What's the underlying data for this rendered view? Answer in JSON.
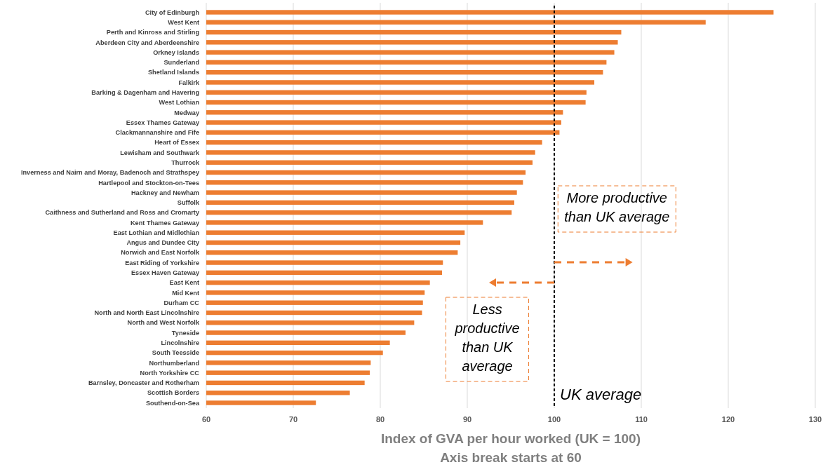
{
  "chart_data": {
    "type": "bar",
    "orientation": "horizontal",
    "xlabel": "Index of GVA per hour worked (UK = 100)",
    "categories": [
      "City of Edinburgh",
      "West Kent",
      "Perth and Kinross and Stirling",
      "Aberdeen City and Aberdeenshire",
      "Orkney Islands",
      "Sunderland",
      "Shetland Islands",
      "Falkirk",
      "Barking & Dagenham and Havering",
      "West Lothian",
      "Medway",
      "Essex Thames Gateway",
      "Clackmannanshire and Fife",
      "Heart of Essex",
      "Lewisham and Southwark",
      "Thurrock",
      "Inverness and Nairn and Moray, Badenoch and Strathspey",
      "Hartlepool and Stockton-on-Tees",
      "Hackney and Newham",
      "Suffolk",
      "Caithness and Sutherland and Ross and Cromarty",
      "Kent Thames Gateway",
      "East Lothian and Midlothian",
      "Angus and Dundee City",
      "Norwich and East Norfolk",
      "East Riding of Yorkshire",
      "Essex Haven Gateway",
      "East Kent",
      "Mid Kent",
      "Durham CC",
      "North and North East Lincolnshire",
      "North and West Norfolk",
      "Tyneside",
      "Lincolnshire",
      "South Teesside",
      "Northumberland",
      "North Yorkshire CC",
      "Barnsley, Doncaster and Rotherham",
      "Scottish Borders",
      "Southend-on-Sea"
    ],
    "values": [
      125.2,
      117.4,
      107.7,
      107.3,
      106.9,
      106.0,
      105.6,
      104.6,
      103.7,
      103.6,
      101.0,
      100.8,
      100.6,
      98.6,
      97.8,
      97.5,
      96.7,
      96.4,
      95.7,
      95.4,
      95.1,
      91.8,
      89.7,
      89.2,
      88.9,
      87.2,
      87.1,
      85.7,
      85.1,
      84.9,
      84.8,
      83.9,
      82.9,
      81.1,
      80.3,
      78.9,
      78.8,
      78.2,
      76.5,
      72.6
    ],
    "color": "#ed7d31",
    "xlim": [
      60,
      130
    ],
    "xticks": [
      60,
      70,
      80,
      90,
      100,
      110,
      120,
      130
    ],
    "grid": "x",
    "ref_lines": [
      {
        "axis": "x",
        "value": 100,
        "label": "UK average",
        "color": "#000000",
        "line_style": "dashed"
      }
    ],
    "annotations": [
      "More productive than UK average",
      "Less productive than UK average",
      "Axis break starts at 60"
    ]
  }
}
